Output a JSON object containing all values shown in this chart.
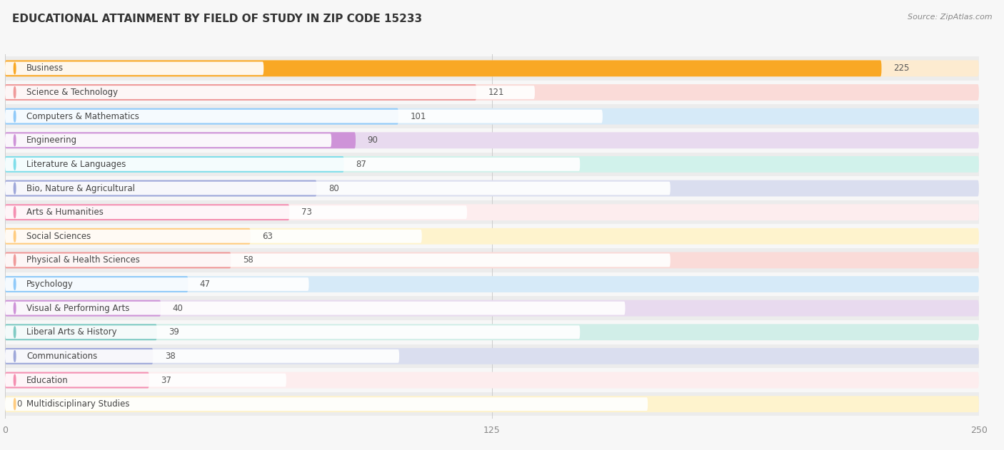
{
  "title": "EDUCATIONAL ATTAINMENT BY FIELD OF STUDY IN ZIP CODE 15233",
  "source": "Source: ZipAtlas.com",
  "categories": [
    "Business",
    "Science & Technology",
    "Computers & Mathematics",
    "Engineering",
    "Literature & Languages",
    "Bio, Nature & Agricultural",
    "Arts & Humanities",
    "Social Sciences",
    "Physical & Health Sciences",
    "Psychology",
    "Visual & Performing Arts",
    "Liberal Arts & History",
    "Communications",
    "Education",
    "Multidisciplinary Studies"
  ],
  "values": [
    225,
    121,
    101,
    90,
    87,
    80,
    73,
    63,
    58,
    47,
    40,
    39,
    38,
    37,
    0
  ],
  "bar_colors": [
    "#F9A825",
    "#EF9A9A",
    "#90CAF9",
    "#CE93D8",
    "#80DEEA",
    "#9FA8DA",
    "#F48FB1",
    "#FFCC80",
    "#EF9A9A",
    "#90CAF9",
    "#CE93D8",
    "#80CBC4",
    "#9FA8DA",
    "#F48FB1",
    "#FFCC80"
  ],
  "bar_bg_colors": [
    "#FDEBD0",
    "#FADBD8",
    "#D6EAF8",
    "#E8DAEF",
    "#D1F2EB",
    "#DADEEF",
    "#FDEDEE",
    "#FEF3CD",
    "#FADBD8",
    "#D6EAF8",
    "#E8DAEF",
    "#D1EEE8",
    "#DADEEF",
    "#FDEDEE",
    "#FEF3CD"
  ],
  "xlim": [
    0,
    250
  ],
  "xticks": [
    0,
    125,
    250
  ],
  "background_color": "#f7f7f7",
  "row_bg_color": "#efefef",
  "title_fontsize": 11,
  "source_fontsize": 8,
  "label_fontsize": 8.5,
  "value_fontsize": 8.5
}
